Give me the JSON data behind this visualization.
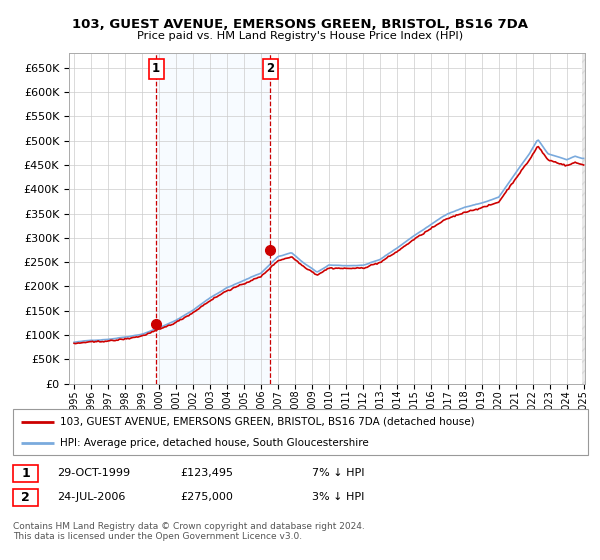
{
  "title": "103, GUEST AVENUE, EMERSONS GREEN, BRISTOL, BS16 7DA",
  "subtitle": "Price paid vs. HM Land Registry's House Price Index (HPI)",
  "legend_line1": "103, GUEST AVENUE, EMERSONS GREEN, BRISTOL, BS16 7DA (detached house)",
  "legend_line2": "HPI: Average price, detached house, South Gloucestershire",
  "annotation1_label": "1",
  "annotation1_date": "29-OCT-1999",
  "annotation1_price": "£123,495",
  "annotation1_hpi": "7% ↓ HPI",
  "annotation2_label": "2",
  "annotation2_date": "24-JUL-2006",
  "annotation2_price": "£275,000",
  "annotation2_hpi": "3% ↓ HPI",
  "footer": "Contains HM Land Registry data © Crown copyright and database right 2024.\nThis data is licensed under the Open Government Licence v3.0.",
  "hpi_color": "#7aaadd",
  "price_color": "#cc0000",
  "dot_color": "#cc0000",
  "bg_shade_color": "#ddeeff",
  "vline_color": "#cc0000",
  "grid_color": "#cccccc",
  "ylim": [
    0,
    680000
  ],
  "yticks": [
    0,
    50000,
    100000,
    150000,
    200000,
    250000,
    300000,
    350000,
    400000,
    450000,
    500000,
    550000,
    600000,
    650000
  ],
  "xlabel_years": [
    "1995",
    "1996",
    "1997",
    "1998",
    "1999",
    "2000",
    "2001",
    "2002",
    "2003",
    "2004",
    "2005",
    "2006",
    "2007",
    "2008",
    "2009",
    "2010",
    "2011",
    "2012",
    "2013",
    "2014",
    "2015",
    "2016",
    "2017",
    "2018",
    "2019",
    "2020",
    "2021",
    "2022",
    "2023",
    "2024",
    "2025"
  ],
  "sale1_x": 1999.83,
  "sale1_y": 123495,
  "sale2_x": 2006.55,
  "sale2_y": 275000,
  "shade_x1": 1999.83,
  "shade_x2": 2006.55,
  "xmin": 1994.7,
  "xmax": 2025.08
}
